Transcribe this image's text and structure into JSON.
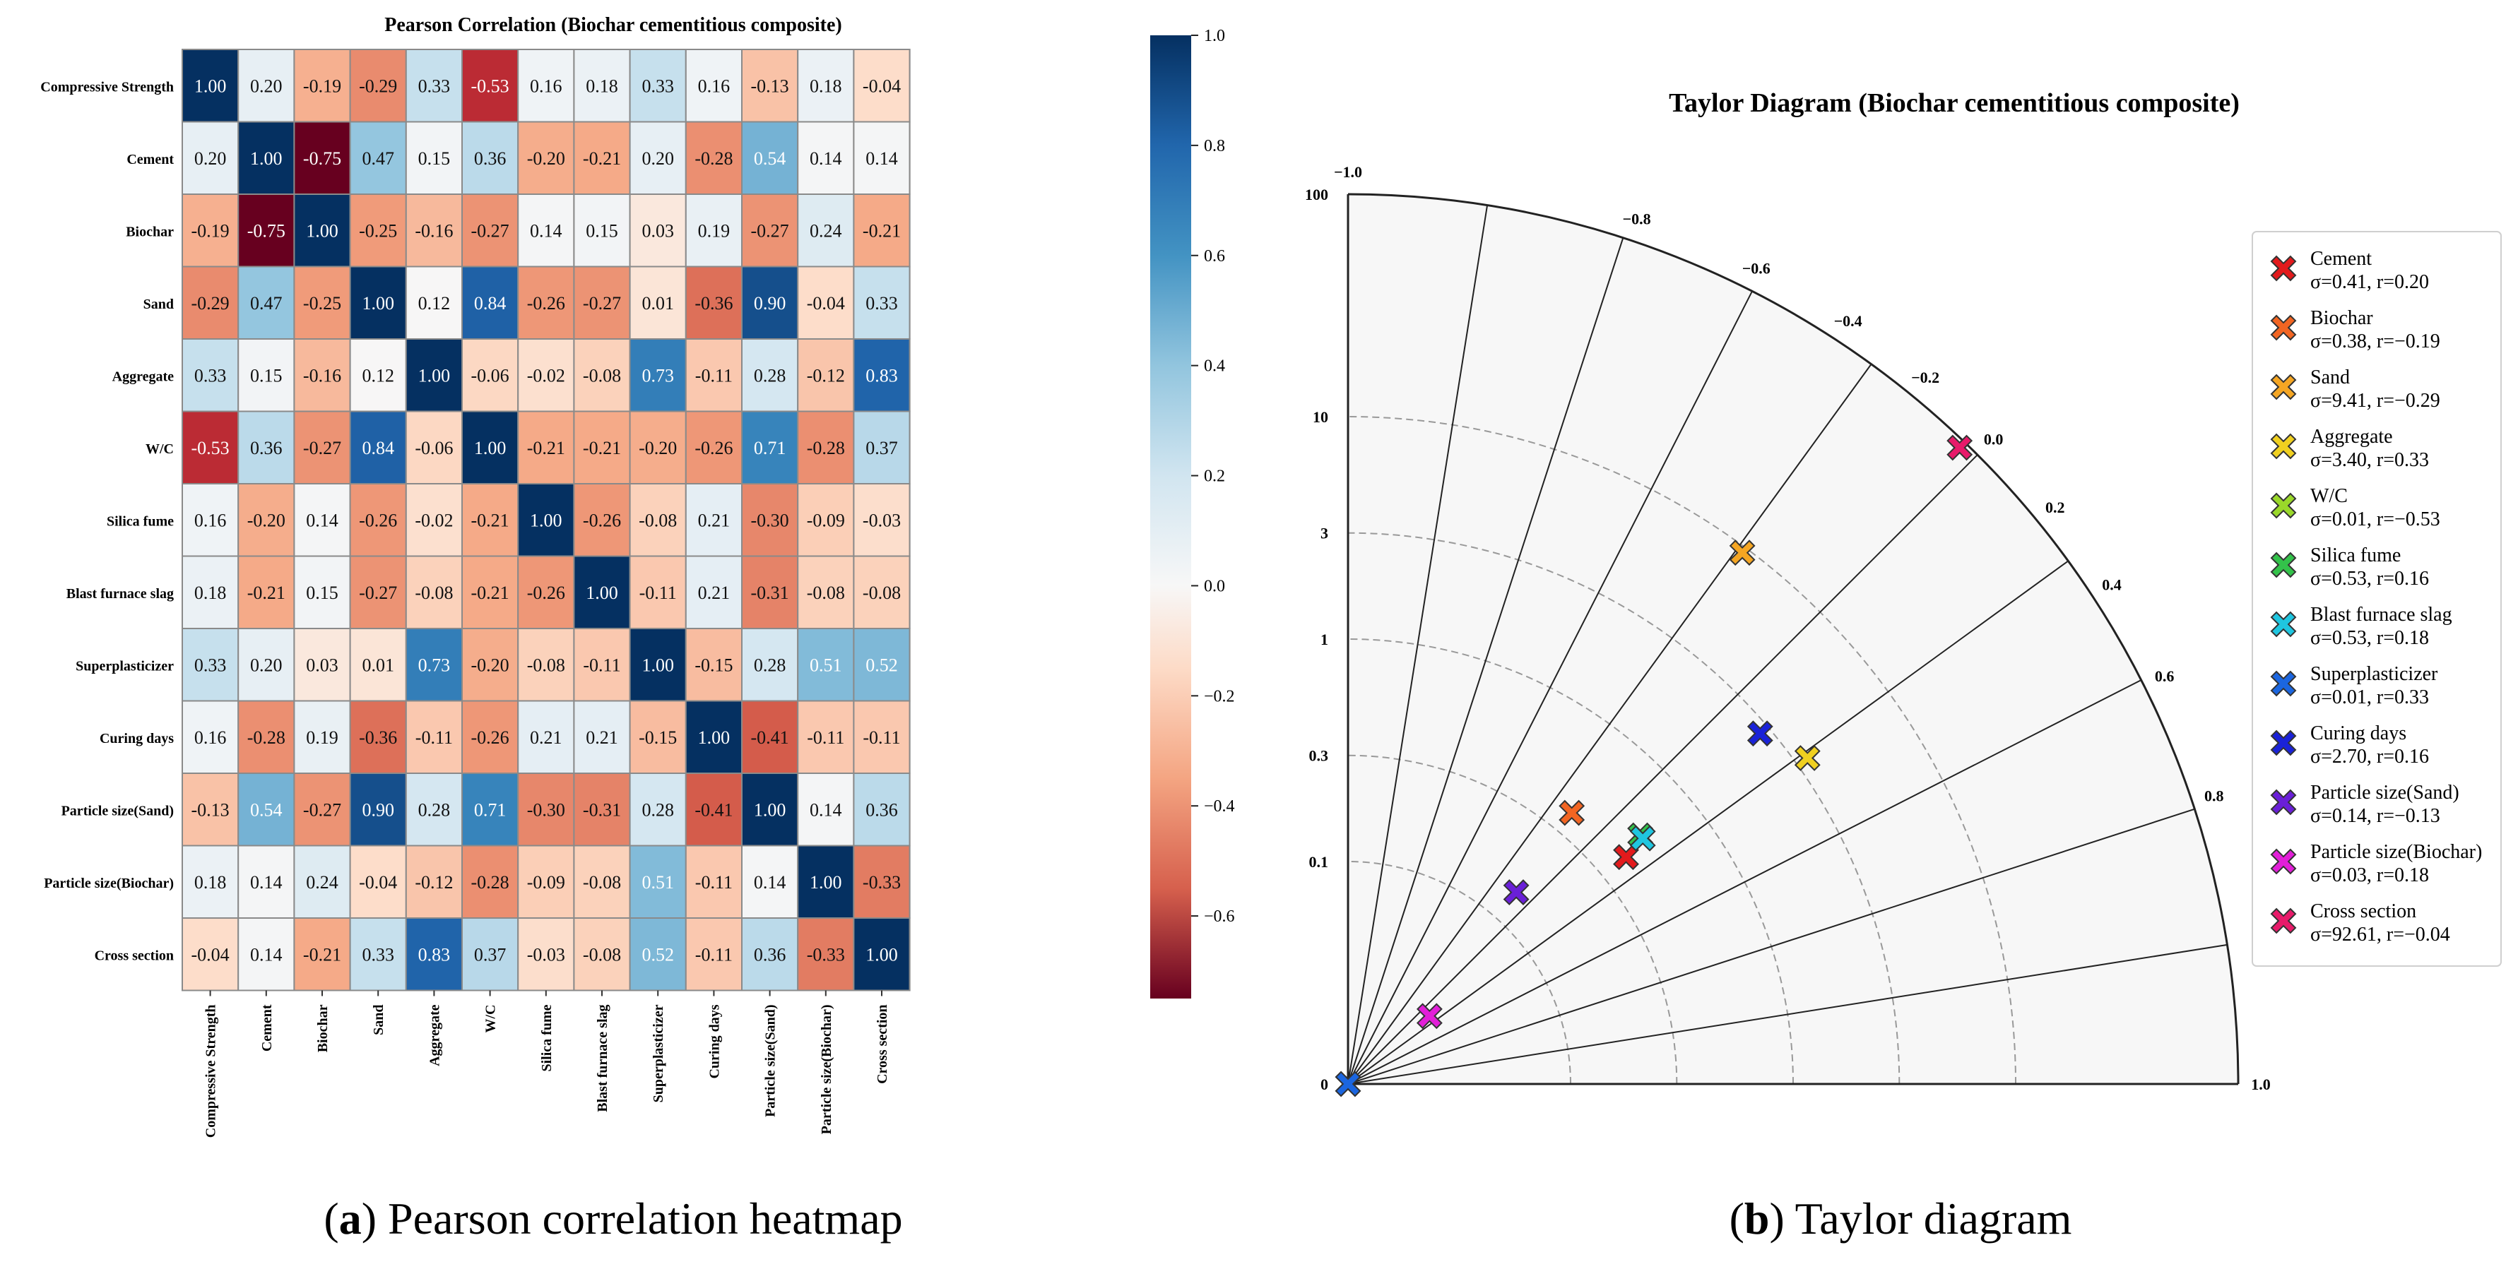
{
  "panels": {
    "a_letter": "a",
    "a_rest": "Pearson correlation heatmap",
    "b_letter": "b",
    "b_rest": "Taylor diagram"
  },
  "chart_data": [
    {
      "type": "heatmap",
      "title": "Pearson Correlation (Biochar cementitious composite)",
      "row_labels": [
        "Compressive Strength",
        "Cement",
        "Biochar",
        "Sand",
        "Aggregate",
        "W/C",
        "Silica fume",
        "Blast furnace slag",
        "Superplasticizer",
        "Curing days",
        "Particle size(Sand)",
        "Particle size(Biochar)",
        "Cross section"
      ],
      "col_labels": [
        "Compressive Strength",
        "Cement",
        "Biochar",
        "Sand",
        "Aggregate",
        "W/C",
        "Silica fume",
        "Blast furnace slag",
        "Superplasticizer",
        "Curing days",
        "Particle size(Sand)",
        "Particle size(Biochar)",
        "Cross section"
      ],
      "values": [
        [
          1.0,
          0.2,
          -0.19,
          -0.29,
          0.33,
          -0.53,
          0.16,
          0.18,
          0.33,
          0.16,
          -0.13,
          0.18,
          -0.04
        ],
        [
          0.2,
          1.0,
          -0.75,
          0.47,
          0.15,
          0.36,
          -0.2,
          -0.21,
          0.2,
          -0.28,
          0.54,
          0.14,
          0.14
        ],
        [
          -0.19,
          -0.75,
          1.0,
          -0.25,
          -0.16,
          -0.27,
          0.14,
          0.15,
          0.03,
          0.19,
          -0.27,
          0.24,
          -0.21
        ],
        [
          -0.29,
          0.47,
          -0.25,
          1.0,
          0.12,
          0.84,
          -0.26,
          -0.27,
          0.01,
          -0.36,
          0.9,
          -0.04,
          0.33
        ],
        [
          0.33,
          0.15,
          -0.16,
          0.12,
          1.0,
          -0.06,
          -0.02,
          -0.08,
          0.73,
          -0.11,
          0.28,
          -0.12,
          0.83
        ],
        [
          -0.53,
          0.36,
          -0.27,
          0.84,
          -0.06,
          1.0,
          -0.21,
          -0.21,
          -0.2,
          -0.26,
          0.71,
          -0.28,
          0.37
        ],
        [
          0.16,
          -0.2,
          0.14,
          -0.26,
          -0.02,
          -0.21,
          1.0,
          -0.26,
          -0.08,
          0.21,
          -0.3,
          -0.09,
          -0.03
        ],
        [
          0.18,
          -0.21,
          0.15,
          -0.27,
          -0.08,
          -0.21,
          -0.26,
          1.0,
          -0.11,
          0.21,
          -0.31,
          -0.08,
          -0.08
        ],
        [
          0.33,
          0.2,
          0.03,
          0.01,
          0.73,
          -0.2,
          -0.08,
          -0.11,
          1.0,
          -0.15,
          0.28,
          0.51,
          0.52
        ],
        [
          0.16,
          -0.28,
          0.19,
          -0.36,
          -0.11,
          -0.26,
          0.21,
          0.21,
          -0.15,
          1.0,
          -0.41,
          -0.11,
          -0.11
        ],
        [
          -0.13,
          0.54,
          -0.27,
          0.9,
          0.28,
          0.71,
          -0.3,
          -0.31,
          0.28,
          -0.41,
          1.0,
          0.14,
          0.36
        ],
        [
          0.18,
          0.14,
          0.24,
          -0.04,
          -0.12,
          -0.28,
          -0.09,
          -0.08,
          0.51,
          -0.11,
          0.14,
          1.0,
          -0.33
        ],
        [
          -0.04,
          0.14,
          -0.21,
          0.33,
          0.83,
          0.37,
          -0.03,
          -0.08,
          0.52,
          -0.11,
          0.36,
          -0.33,
          1.0
        ]
      ],
      "colorbar": {
        "min": -0.75,
        "max": 1.0,
        "ticks": [
          1.0,
          0.8,
          0.6,
          0.4,
          0.2,
          0.0,
          -0.2,
          -0.4,
          -0.6
        ],
        "tick_labels": [
          "1.0",
          "0.8",
          "0.6",
          "0.4",
          "0.2",
          "0.0",
          "−0.2",
          "−0.4",
          "−0.6"
        ]
      }
    },
    {
      "type": "scatter",
      "subtype": "taylor-diagram",
      "title": "Taylor Diagram (Biochar cementitious composite)",
      "std_axis": {
        "scale": "log",
        "range": [
          0.01,
          100
        ],
        "ticks": [
          0.1,
          0.3,
          1,
          3,
          10,
          100
        ],
        "tick_labels": [
          "0.1",
          "0.3",
          "1",
          "3",
          "10",
          "100"
        ],
        "origin_label": "0",
        "rings": [
          0.1,
          0.3,
          1,
          3,
          10
        ]
      },
      "corr_axis": {
        "range": [
          -1.0,
          1.0
        ],
        "ticks": [
          1.0,
          0.8,
          0.6,
          0.4,
          0.2,
          0.0,
          -0.2,
          -0.4,
          -0.6,
          -0.8,
          -1.0
        ],
        "tick_labels": [
          "1.0",
          "0.8",
          "0.6",
          "0.4",
          "0.2",
          "0.0",
          "−0.2",
          "−0.4",
          "−0.6",
          "−0.8",
          "−1.0"
        ]
      },
      "points": [
        {
          "name": "Cement",
          "sigma": 0.41,
          "r": 0.2,
          "color": "#e31a1c",
          "legend": "σ=0.41, r=0.20"
        },
        {
          "name": "Biochar",
          "sigma": 0.38,
          "r": -0.19,
          "color": "#f26522",
          "legend": "σ=0.38, r=−0.19"
        },
        {
          "name": "Sand",
          "sigma": 9.41,
          "r": -0.29,
          "color": "#f5a623",
          "legend": "σ=9.41, r=−0.29"
        },
        {
          "name": "Aggregate",
          "sigma": 3.4,
          "r": 0.33,
          "color": "#f0d020",
          "legend": "σ=3.40, r=0.33"
        },
        {
          "name": "W/C",
          "sigma": 0.01,
          "r": -0.53,
          "color": "#9ad82a",
          "legend": "σ=0.01, r=−0.53"
        },
        {
          "name": "Silica fume",
          "sigma": 0.53,
          "r": 0.16,
          "color": "#33c24a",
          "legend": "σ=0.53, r=0.16"
        },
        {
          "name": "Blast furnace slag",
          "sigma": 0.53,
          "r": 0.18,
          "color": "#1fc6e0",
          "legend": "σ=0.53, r=0.18"
        },
        {
          "name": "Superplasticizer",
          "sigma": 0.01,
          "r": 0.33,
          "color": "#1b66e0",
          "legend": "σ=0.01, r=0.33"
        },
        {
          "name": "Curing days",
          "sigma": 2.7,
          "r": 0.16,
          "color": "#1a22d8",
          "legend": "σ=2.70, r=0.16"
        },
        {
          "name": "Particle size(Sand)",
          "sigma": 0.14,
          "r": -0.13,
          "color": "#6a1fd8",
          "legend": "σ=0.14, r=−0.13"
        },
        {
          "name": "Particle size(Biochar)",
          "sigma": 0.03,
          "r": 0.18,
          "color": "#e21fd8",
          "legend": "σ=0.03, r=0.18"
        },
        {
          "name": "Cross section",
          "sigma": 92.61,
          "r": -0.04,
          "color": "#e81a6a",
          "legend": "σ=92.61, r=−0.04"
        }
      ]
    }
  ]
}
